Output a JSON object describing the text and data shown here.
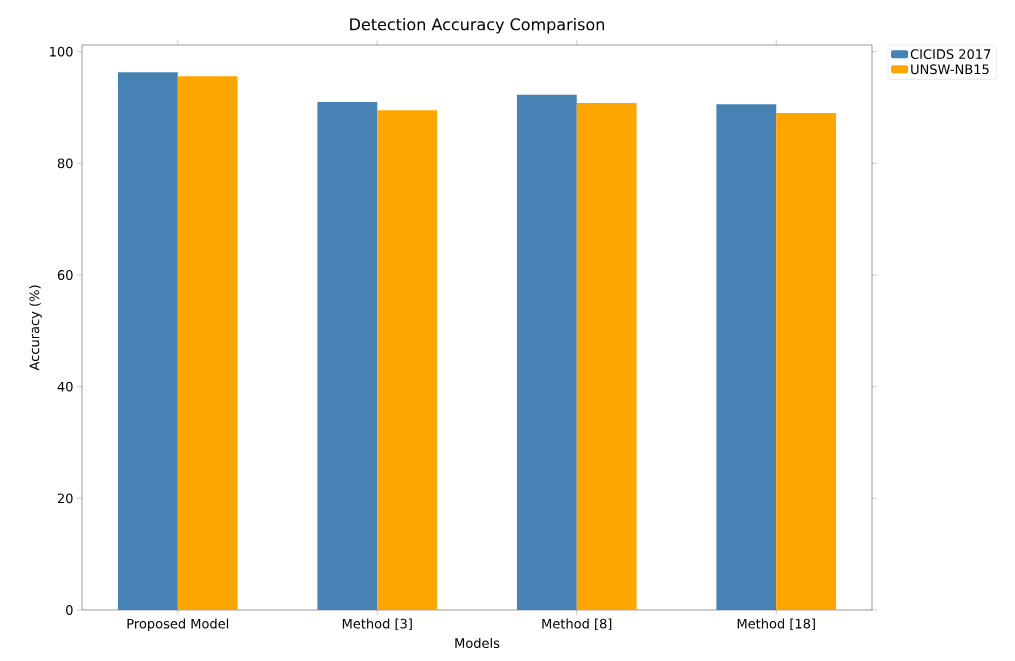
{
  "chart_data": {
    "type": "bar",
    "title": "Detection Accuracy Comparison",
    "xlabel": "Models",
    "ylabel": "Accuracy (%)",
    "categories": [
      "Proposed Model",
      "Method [3]",
      "Method [8]",
      "Method [18]"
    ],
    "series": [
      {
        "name": "CICIDS 2017",
        "color": "#4682b4",
        "values": [
          96.3,
          91.0,
          92.3,
          90.6
        ]
      },
      {
        "name": "UNSW-NB15",
        "color": "#ffa500",
        "values": [
          95.6,
          89.5,
          90.8,
          89.0
        ]
      }
    ],
    "ylim": [
      0,
      101.2
    ],
    "yticks": [
      0,
      20,
      40,
      60,
      80,
      100
    ],
    "legend": "top right"
  }
}
